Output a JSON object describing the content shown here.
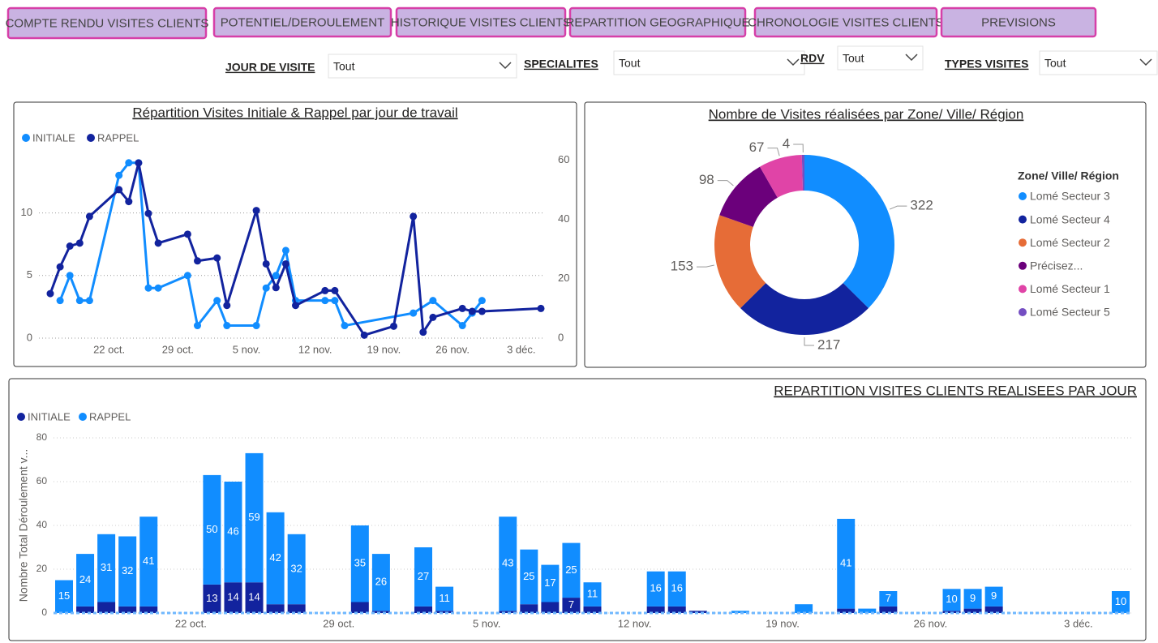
{
  "tabs": [
    "COMPTE RENDU VISITES CLIENTS",
    "POTENTIEL/DEROULEMENT",
    "HISTORIQUE VISITES CLIENTS",
    "REPARTITION GEOGRAPHIQUE",
    "CHRONOLOGIE VISITES CLIENTS",
    "PREVISIONS"
  ],
  "filters": [
    {
      "label": "JOUR DE VISITE",
      "value": "Tout"
    },
    {
      "label": "SPECIALITES",
      "value": "Tout"
    },
    {
      "label": "RDV",
      "value": "Tout"
    },
    {
      "label": "TYPES VISITES",
      "value": "Tout"
    }
  ],
  "chart_data": [
    {
      "type": "line",
      "title": "Répartition Visites Initiale & Rappel par jour de travail",
      "legend": "top-left",
      "grid": true,
      "series": [
        {
          "name": "INITIALE",
          "color": "#118dff",
          "x": [
            "10-17",
            "10-18",
            "10-19",
            "10-20",
            "10-23",
            "10-24",
            "10-25",
            "10-26",
            "10-27",
            "10-30",
            "10-31",
            "11-02",
            "11-03",
            "11-06",
            "11-07",
            "11-08",
            "11-09",
            "11-10",
            "11-13",
            "11-14",
            "11-15",
            "11-22",
            "11-24",
            "11-27",
            "11-28",
            "11-29"
          ],
          "values": [
            3,
            5,
            3,
            3,
            13,
            14,
            14,
            4,
            4,
            5,
            1,
            3,
            1,
            1,
            4,
            5,
            7,
            3,
            3,
            3,
            1,
            2,
            3,
            1,
            2,
            3
          ]
        },
        {
          "name": "RAPPEL",
          "color": "#12239e",
          "axis": "y2",
          "x": [
            "10-16",
            "10-17",
            "10-18",
            "10-19",
            "10-20",
            "10-23",
            "10-24",
            "10-25",
            "10-26",
            "10-27",
            "10-30",
            "10-31",
            "11-02",
            "11-03",
            "11-06",
            "11-07",
            "11-08",
            "11-09",
            "11-10",
            "11-13",
            "11-14",
            "11-17",
            "11-20",
            "11-22",
            "11-23",
            "11-24",
            "11-27",
            "11-28",
            "11-29",
            "12-05"
          ],
          "values": [
            15,
            24,
            31,
            32,
            41,
            50,
            46,
            59,
            42,
            32,
            35,
            26,
            27,
            11,
            43,
            25,
            17,
            25,
            11,
            16,
            16,
            1,
            4,
            41,
            2,
            7,
            10,
            9,
            9,
            10
          ]
        }
      ],
      "ylim": [
        0,
        14.7
      ],
      "yticks": [
        0,
        5,
        10
      ],
      "y2lim": [
        0,
        62
      ],
      "y2ticks": [
        0,
        20,
        40,
        60
      ],
      "xticks": [
        {
          "value": "10-22",
          "label": "22 oct."
        },
        {
          "value": "10-29",
          "label": "29 oct."
        },
        {
          "value": "11-05",
          "label": "5 nov."
        },
        {
          "value": "11-12",
          "label": "12 nov."
        },
        {
          "value": "11-19",
          "label": "19 nov."
        },
        {
          "value": "11-26",
          "label": "26 nov."
        },
        {
          "value": "12-03",
          "label": "3 déc."
        }
      ]
    },
    {
      "type": "pie",
      "title": "Nombre de Visites réalisées par Zone/ Ville/ Région",
      "legend_title": "Zone/ Ville/ Région",
      "legend": "right",
      "categories": [
        "Lomé Secteur 3",
        "Lomé Secteur 4",
        "Lomé Secteur 2",
        "Précisez...",
        "Lomé Secteur 1",
        "Lomé Secteur 5"
      ],
      "values": [
        322,
        217,
        153,
        98,
        67,
        4
      ],
      "colors": [
        "#118dff",
        "#12239e",
        "#e66c37",
        "#6b007b",
        "#e044a7",
        "#744ec2"
      ]
    },
    {
      "type": "bar",
      "stacked": true,
      "title": "REPARTITION VISITES CLIENTS REALISEES PAR JOUR",
      "y_label": "Nombre Total Déroulement v...",
      "legend": "top-left",
      "grid": true,
      "x": [
        "10-16",
        "10-17",
        "10-18",
        "10-19",
        "10-20",
        "10-23",
        "10-24",
        "10-25",
        "10-26",
        "10-27",
        "10-30",
        "10-31",
        "11-02",
        "11-03",
        "11-06",
        "11-07",
        "11-08",
        "11-09",
        "11-10",
        "11-13",
        "11-14",
        "11-15",
        "11-17",
        "11-20",
        "11-22",
        "11-23",
        "11-24",
        "11-27",
        "11-28",
        "11-29",
        "12-05"
      ],
      "series": [
        {
          "name": "INITIALE",
          "color": "#12239e",
          "values": [
            null,
            3,
            5,
            3,
            3,
            13,
            14,
            14,
            4,
            4,
            5,
            1,
            3,
            1,
            1,
            4,
            5,
            7,
            3,
            3,
            3,
            1,
            null,
            null,
            2,
            null,
            3,
            1,
            2,
            3,
            null
          ]
        },
        {
          "name": "RAPPEL",
          "color": "#118dff",
          "values": [
            15,
            24,
            31,
            32,
            41,
            50,
            46,
            59,
            42,
            32,
            35,
            26,
            27,
            11,
            43,
            25,
            17,
            25,
            11,
            16,
            16,
            null,
            1,
            4,
            41,
            2,
            7,
            10,
            9,
            9,
            10
          ]
        }
      ],
      "ylim": [
        0,
        80
      ],
      "yticks": [
        0,
        20,
        40,
        60,
        80
      ],
      "xticks": [
        {
          "value": "10-22",
          "label": "22 oct."
        },
        {
          "value": "10-29",
          "label": "29 oct."
        },
        {
          "value": "11-05",
          "label": "5 nov."
        },
        {
          "value": "11-12",
          "label": "12 nov."
        },
        {
          "value": "11-19",
          "label": "19 nov."
        },
        {
          "value": "11-26",
          "label": "26 nov."
        },
        {
          "value": "12-03",
          "label": "3 déc."
        }
      ]
    }
  ]
}
